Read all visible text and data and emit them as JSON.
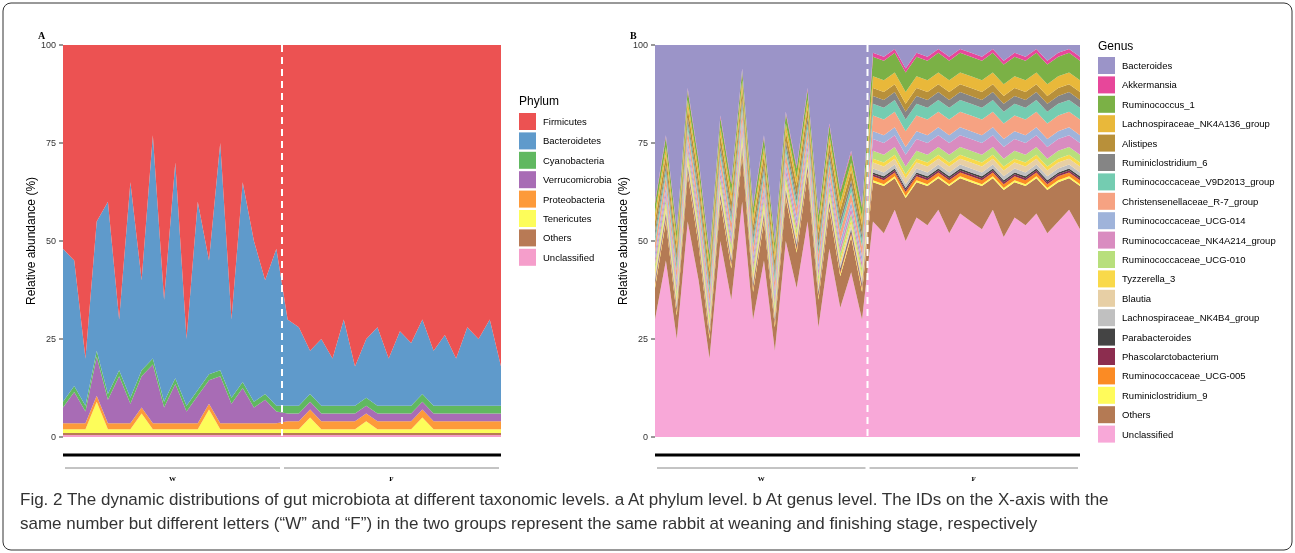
{
  "chart_data": [
    {
      "type": "area",
      "stacked": true,
      "title": "A",
      "ylabel": "Relative abundance (%)",
      "legend_title": "Phylum",
      "legend": "right",
      "grid": false,
      "tick_labels": "y",
      "categories": [
        null,
        null,
        null,
        null,
        null,
        null,
        null,
        null,
        null,
        null,
        null,
        null,
        null,
        null,
        null,
        null,
        null,
        null,
        null,
        null,
        null,
        null,
        null,
        null,
        null,
        null,
        null,
        null,
        null,
        null,
        null,
        null,
        null,
        null,
        null,
        null,
        null,
        null,
        null,
        null
      ],
      "ylim": [
        0,
        100
      ],
      "yticks": [
        0,
        25,
        50,
        75,
        100
      ],
      "ref_lines": [
        {
          "axis": "x",
          "color": "#ffffff",
          "line_style": "dashed"
        }
      ],
      "annotations": [
        {
          "text": "W"
        },
        {
          "text": "F"
        },
        "Fig. 2 The dynamic distributions of gut microbiota at different taxonomic levels. a At phylum level. b At genus level. The IDs on the X-axis with the same number but different letters (“W” and “F”) in the two groups represent the same rabbit at weaning and finishing stage, respectively"
      ],
      "series": [
        {
          "name": "Unclassified",
          "color": "#f59ecb",
          "values": [
            0.5,
            0.5,
            0.5,
            0.5,
            0.5,
            0.5,
            0.5,
            0.5,
            0.5,
            0.5,
            0.5,
            0.5,
            0.5,
            0.5,
            0.5,
            0.5,
            0.5,
            0.5,
            0.5,
            0.5,
            0.5,
            0.5,
            0.5,
            0.5,
            0.5,
            0.5,
            0.5,
            0.5,
            0.5,
            0.5,
            0.5,
            0.5,
            0.5,
            0.5,
            0.5,
            0.5,
            0.5,
            0.5,
            0.5,
            0.5
          ]
        },
        {
          "name": "Others",
          "color": "#b87a55",
          "values": [
            0.5,
            0.5,
            0.5,
            0.5,
            0.5,
            0.5,
            0.5,
            0.5,
            0.5,
            0.5,
            0.5,
            0.5,
            0.5,
            0.5,
            0.5,
            0.5,
            0.5,
            0.5,
            0.5,
            0.5,
            0.5,
            0.5,
            0.5,
            0.5,
            0.5,
            0.5,
            0.5,
            0.5,
            0.5,
            0.5,
            0.5,
            0.5,
            0.5,
            0.5,
            0.5,
            0.5,
            0.5,
            0.5,
            0.5,
            0.5
          ]
        },
        {
          "name": "Tenericutes",
          "color": "#fdfd5a",
          "values": [
            1,
            1,
            1,
            8,
            1,
            1,
            1,
            5,
            1,
            1,
            1,
            1,
            1,
            6,
            1,
            1,
            1,
            1,
            1,
            1,
            1,
            1,
            4,
            1,
            1,
            1,
            1,
            3,
            1,
            1,
            1,
            1,
            4,
            1,
            1,
            1,
            1,
            1,
            1,
            1
          ]
        },
        {
          "name": "Proteobacteria",
          "color": "#fd9a3a",
          "values": [
            1.5,
            1.5,
            1.5,
            1.5,
            1.5,
            1.5,
            1.5,
            1.5,
            1.5,
            1.5,
            1.5,
            1.5,
            1.5,
            1.5,
            1.5,
            1.5,
            1.5,
            1.5,
            1.5,
            1.5,
            2,
            2,
            2,
            2,
            2,
            2,
            2,
            2,
            2,
            2,
            2,
            2,
            2,
            2,
            2,
            2,
            2,
            2,
            2,
            2
          ]
        },
        {
          "name": "Verrucomicrobia",
          "color": "#a86cb5",
          "values": [
            4,
            8,
            3,
            10,
            6,
            12,
            5,
            8,
            15,
            4,
            10,
            3,
            7,
            6,
            12,
            5,
            9,
            4,
            6,
            3,
            2,
            2,
            2,
            2,
            2,
            2,
            2,
            2,
            2,
            2,
            2,
            2,
            2,
            2,
            2,
            2,
            2,
            2,
            2,
            2
          ]
        },
        {
          "name": "Cyanobacteria",
          "color": "#60b860",
          "values": [
            1.5,
            1.5,
            1.5,
            1.5,
            1.5,
            1.5,
            1.5,
            1.5,
            1.5,
            1.5,
            1.5,
            1.5,
            1.5,
            1.5,
            1.5,
            1.5,
            1.5,
            1.5,
            1.5,
            1.5,
            2,
            2,
            2,
            2,
            2,
            2,
            2,
            2,
            2,
            2,
            2,
            2,
            2,
            2,
            2,
            2,
            2,
            2,
            2,
            2
          ]
        },
        {
          "name": "Bacteroidetes",
          "color": "#5f9acb",
          "values": [
            39,
            32,
            12,
            33,
            49,
            13,
            55,
            23,
            57,
            26,
            55,
            17,
            48,
            29,
            58,
            20,
            51,
            41,
            29,
            40,
            22,
            20,
            11,
            17,
            12,
            22,
            10,
            15,
            20,
            12,
            19,
            16,
            19,
            14,
            18,
            12,
            20,
            17,
            22,
            10
          ]
        },
        {
          "name": "Firmicutes",
          "color": "#ec5252",
          "values": [
            52,
            55,
            80,
            45,
            40,
            70,
            35,
            60,
            23,
            65,
            30,
            75,
            40,
            55,
            25,
            70,
            35,
            50,
            60,
            52,
            70,
            72,
            78,
            75,
            80,
            70,
            82,
            75,
            72,
            80,
            73,
            76,
            70,
            78,
            74,
            80,
            72,
            75,
            70,
            82
          ]
        }
      ]
    },
    {
      "type": "area",
      "stacked": true,
      "title": "B",
      "ylabel": "Relative abundance (%)",
      "legend_title": "Genus",
      "legend": "right",
      "grid": false,
      "tick_labels": "y",
      "categories": [
        null,
        null,
        null,
        null,
        null,
        null,
        null,
        null,
        null,
        null,
        null,
        null,
        null,
        null,
        null,
        null,
        null,
        null,
        null,
        null,
        null,
        null,
        null,
        null,
        null,
        null,
        null,
        null,
        null,
        null,
        null,
        null,
        null,
        null,
        null,
        null,
        null,
        null,
        null,
        null
      ],
      "ylim": [
        0,
        100
      ],
      "yticks": [
        0,
        25,
        50,
        75,
        100
      ],
      "ref_lines": [
        {
          "axis": "x",
          "color": "#ffffff",
          "line_style": "dashed"
        }
      ],
      "annotations": [
        {
          "text": "W"
        },
        {
          "text": "F"
        }
      ],
      "series": [
        {
          "name": "Unclassified",
          "color": "#f8a8d8",
          "values": [
            30,
            45,
            25,
            55,
            40,
            20,
            50,
            35,
            60,
            30,
            45,
            22,
            50,
            38,
            55,
            28,
            48,
            33,
            42,
            30,
            55,
            52,
            58,
            50,
            56,
            54,
            58,
            52,
            57,
            55,
            53,
            58,
            51,
            56,
            54,
            57,
            52,
            55,
            58,
            53
          ]
        },
        {
          "name": "Others",
          "color": "#b47a54",
          "values": [
            8,
            10,
            6,
            12,
            9,
            5,
            10,
            8,
            12,
            7,
            10,
            6,
            11,
            9,
            12,
            7,
            10,
            8,
            9,
            7,
            10,
            12,
            8,
            11,
            9,
            10,
            8,
            12,
            9,
            10,
            11,
            8,
            12,
            9,
            10,
            9,
            11,
            10,
            8,
            11
          ]
        },
        {
          "name": "Ruminiclostridium_9",
          "color": "#fffb5b",
          "values": [
            0.5,
            0.5,
            0.5,
            0.5,
            0.5,
            0.5,
            0.5,
            0.5,
            0.5,
            0.5,
            0.5,
            0.5,
            0.5,
            0.5,
            0.5,
            0.5,
            0.5,
            0.5,
            0.5,
            0.5,
            0.5,
            0.5,
            0.5,
            0.5,
            0.5,
            0.5,
            0.5,
            0.5,
            0.5,
            0.5,
            0.5,
            0.5,
            0.5,
            0.5,
            0.5,
            0.5,
            0.5,
            0.5,
            0.5,
            0.5
          ]
        },
        {
          "name": "Ruminococcaceae_UCG-005",
          "color": "#fb8b24",
          "values": [
            0.5,
            0.5,
            0.5,
            0.5,
            0.5,
            0.5,
            0.5,
            0.5,
            0.5,
            0.5,
            0.5,
            0.5,
            0.5,
            0.5,
            0.5,
            0.5,
            0.5,
            0.5,
            0.5,
            0.5,
            1,
            1,
            1,
            1,
            1,
            1,
            1,
            1,
            1,
            1,
            1,
            1,
            1,
            1,
            1,
            1,
            1,
            1,
            1,
            1
          ]
        },
        {
          "name": "Phascolarctobacterium",
          "color": "#8c2d4f",
          "values": [
            0.5,
            0.5,
            0.5,
            0.5,
            0.5,
            0.5,
            0.5,
            0.5,
            0.5,
            0.5,
            0.5,
            0.5,
            0.5,
            0.5,
            0.5,
            0.5,
            0.5,
            0.5,
            0.5,
            0.5,
            0.5,
            0.5,
            0.5,
            0.5,
            0.5,
            0.5,
            0.5,
            0.5,
            0.5,
            0.5,
            0.5,
            0.5,
            0.5,
            0.5,
            0.5,
            0.5,
            0.5,
            0.5,
            0.5,
            0.5
          ]
        },
        {
          "name": "Parabacteroides",
          "color": "#444444",
          "values": [
            0.5,
            0.5,
            0.5,
            0.5,
            0.5,
            0.5,
            0.5,
            0.5,
            0.5,
            0.5,
            0.5,
            0.5,
            0.5,
            0.5,
            0.5,
            0.5,
            0.5,
            0.5,
            0.5,
            0.5,
            0.5,
            0.5,
            0.5,
            0.5,
            0.5,
            0.5,
            0.5,
            0.5,
            0.5,
            0.5,
            0.5,
            0.5,
            0.5,
            0.5,
            0.5,
            0.5,
            0.5,
            0.5,
            0.5,
            0.5
          ]
        },
        {
          "name": "Lachnospiraceae_NK4B4_group",
          "color": "#c0c0c0",
          "values": [
            0.5,
            0.5,
            0.5,
            0.5,
            0.5,
            0.5,
            0.5,
            0.5,
            0.5,
            0.5,
            0.5,
            0.5,
            0.5,
            0.5,
            0.5,
            0.5,
            0.5,
            0.5,
            0.5,
            0.5,
            1,
            1,
            1,
            1,
            1,
            1,
            1,
            1,
            1,
            1,
            1,
            1,
            1,
            1,
            1,
            1,
            1,
            1,
            1,
            1
          ]
        },
        {
          "name": "Blautia",
          "color": "#e7cfa5",
          "values": [
            1,
            1,
            1,
            1,
            1,
            1,
            1,
            1,
            1,
            1,
            1,
            1,
            1,
            1,
            1,
            1,
            1,
            1,
            1,
            1,
            1.5,
            1.5,
            1.5,
            1.5,
            1.5,
            1.5,
            1.5,
            1.5,
            1.5,
            1.5,
            1.5,
            1.5,
            1.5,
            1.5,
            1.5,
            1.5,
            1.5,
            1.5,
            1.5,
            1.5
          ]
        },
        {
          "name": "Tyzzerella_3",
          "color": "#f9d94a",
          "values": [
            1,
            1,
            1,
            1,
            1,
            1,
            1,
            1,
            1,
            1,
            1,
            1,
            1,
            1,
            1,
            1,
            1,
            1,
            1,
            1,
            1,
            1,
            1,
            1,
            1,
            1,
            1,
            1,
            1,
            1,
            1,
            1,
            1,
            1,
            1,
            1,
            1,
            1,
            1,
            1
          ]
        },
        {
          "name": "Ruminococcaceae_UCG-010",
          "color": "#b8df7c",
          "values": [
            1.5,
            1.5,
            1.5,
            1.5,
            1.5,
            1.5,
            1.5,
            1.5,
            1.5,
            1.5,
            1.5,
            1.5,
            1.5,
            1.5,
            1.5,
            1.5,
            1.5,
            1.5,
            1.5,
            1.5,
            2,
            2,
            2,
            2,
            2,
            2,
            2,
            2,
            2,
            2,
            2,
            2,
            2,
            2,
            2,
            2,
            2,
            2,
            2,
            2
          ]
        },
        {
          "name": "Ruminococcaceae_NK4A214_group",
          "color": "#d98cc0",
          "values": [
            1.5,
            1.5,
            1.5,
            1.5,
            1.5,
            1.5,
            1.5,
            1.5,
            1.5,
            1.5,
            1.5,
            1.5,
            1.5,
            1.5,
            1.5,
            1.5,
            1.5,
            1.5,
            1.5,
            1.5,
            3,
            3,
            3,
            3,
            3,
            3,
            3,
            3,
            3,
            3,
            3,
            3,
            3,
            3,
            3,
            3,
            3,
            3,
            3,
            3
          ]
        },
        {
          "name": "Ruminococcaceae_UCG-014",
          "color": "#9fb3da",
          "values": [
            1.5,
            1.5,
            1.5,
            1.5,
            1.5,
            1.5,
            1.5,
            1.5,
            1.5,
            1.5,
            1.5,
            1.5,
            1.5,
            1.5,
            1.5,
            1.5,
            1.5,
            1.5,
            1.5,
            1.5,
            2,
            2,
            2,
            2,
            2,
            2,
            2,
            2,
            2,
            2,
            2,
            2,
            2,
            2,
            2,
            2,
            2,
            2,
            2,
            2
          ]
        },
        {
          "name": "Christensenellaceae_R-7_group",
          "color": "#f6a282",
          "values": [
            2.5,
            2.5,
            2.5,
            2.5,
            2.5,
            2.5,
            2.5,
            2.5,
            2.5,
            2.5,
            2.5,
            2.5,
            2.5,
            2.5,
            2.5,
            2.5,
            2.5,
            2.5,
            2.5,
            2.5,
            4,
            4,
            4,
            4,
            4,
            4,
            4,
            4,
            4,
            4,
            4,
            4,
            4,
            4,
            4,
            4,
            4,
            4,
            4,
            4
          ]
        },
        {
          "name": "Ruminococcaceae_V9D2013_group",
          "color": "#74ccb1",
          "values": [
            1.5,
            1.5,
            1.5,
            1.5,
            1.5,
            1.5,
            1.5,
            1.5,
            1.5,
            1.5,
            1.5,
            1.5,
            1.5,
            1.5,
            1.5,
            1.5,
            1.5,
            1.5,
            1.5,
            1.5,
            3,
            3,
            3,
            3,
            3,
            3,
            3,
            3,
            3,
            3,
            3,
            3,
            3,
            3,
            3,
            3,
            3,
            3,
            3,
            3
          ]
        },
        {
          "name": "Ruminiclostridium_6",
          "color": "#858585",
          "values": [
            1.5,
            1.5,
            1.5,
            1.5,
            1.5,
            1.5,
            1.5,
            1.5,
            1.5,
            1.5,
            1.5,
            1.5,
            1.5,
            1.5,
            1.5,
            1.5,
            1.5,
            1.5,
            1.5,
            1.5,
            2,
            2,
            2,
            2,
            2,
            2,
            2,
            2,
            2,
            2,
            2,
            2,
            2,
            2,
            2,
            2,
            2,
            2,
            2,
            2
          ]
        },
        {
          "name": "Alistipes",
          "color": "#b8903a",
          "values": [
            2.5,
            2.5,
            2.5,
            2.5,
            2.5,
            2.5,
            2.5,
            2.5,
            2.5,
            2.5,
            2.5,
            2.5,
            2.5,
            2.5,
            2.5,
            2.5,
            2.5,
            2.5,
            2.5,
            2.5,
            2,
            2,
            2,
            2,
            2,
            2,
            2,
            2,
            2,
            2,
            2,
            2,
            2,
            2,
            2,
            2,
            2,
            2,
            2,
            2
          ]
        },
        {
          "name": "Lachnospiraceae_NK4A136_group",
          "color": "#e9b83a",
          "values": [
            2,
            2,
            2,
            2,
            2,
            2,
            2,
            2,
            2,
            2,
            2,
            2,
            2,
            2,
            2,
            2,
            2,
            2,
            2,
            2,
            3,
            3,
            3,
            3,
            3,
            3,
            3,
            3,
            3,
            3,
            3,
            3,
            3,
            3,
            3,
            3,
            3,
            3,
            3,
            3
          ]
        },
        {
          "name": "Ruminococcus_1",
          "color": "#7bb146",
          "values": [
            2.5,
            2.5,
            2.5,
            2.5,
            2.5,
            2.5,
            2.5,
            2.5,
            2.5,
            2.5,
            2.5,
            2.5,
            2.5,
            2.5,
            2.5,
            2.5,
            2.5,
            2.5,
            2.5,
            2.5,
            5,
            5,
            5,
            5,
            5,
            5,
            5,
            5,
            5,
            5,
            5,
            5,
            5,
            5,
            5,
            5,
            5,
            5,
            5,
            5
          ]
        },
        {
          "name": "Akkermansia",
          "color": "#e7479a",
          "values": [
            0.5,
            0.5,
            0.5,
            0.5,
            0.5,
            0.5,
            0.5,
            0.5,
            0.5,
            0.5,
            0.5,
            0.5,
            0.5,
            0.5,
            0.5,
            0.5,
            0.5,
            0.5,
            0.5,
            0.5,
            1,
            1,
            1,
            1,
            1,
            1,
            1,
            1,
            1,
            1,
            1,
            1,
            1,
            1,
            1,
            1,
            1,
            1,
            1,
            1
          ]
        },
        {
          "name": "Bacteroides",
          "color": "#9b94c8",
          "values": [
            40,
            23,
            47,
            11,
            29,
            53,
            18,
            35,
            6,
            41,
            23,
            50,
            17,
            31,
            11,
            43,
            20,
            37,
            27,
            41,
            2,
            3,
            1,
            6,
            2,
            3,
            1,
            3,
            1,
            2,
            3,
            1,
            4,
            2,
            3,
            1,
            4,
            2,
            1,
            3
          ]
        }
      ]
    }
  ]
}
